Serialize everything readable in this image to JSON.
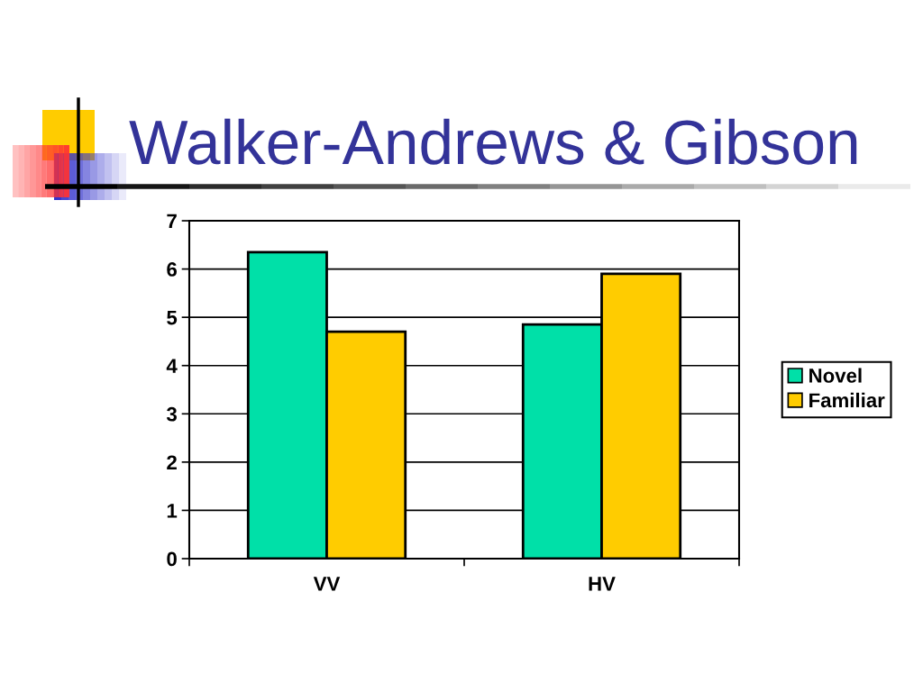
{
  "chart_data": {
    "type": "bar",
    "title": "Walker-Andrews & Gibson",
    "categories": [
      "VV",
      "HV"
    ],
    "series": [
      {
        "name": "Novel",
        "color": "#00e0a8",
        "values": [
          6.35,
          4.85
        ]
      },
      {
        "name": "Familiar",
        "color": "#ffcc00",
        "values": [
          4.7,
          5.9
        ]
      }
    ],
    "ylim": [
      0,
      7
    ],
    "yticks": [
      0,
      1,
      2,
      3,
      4,
      5,
      6,
      7
    ],
    "grid": "y",
    "legend": "right"
  }
}
